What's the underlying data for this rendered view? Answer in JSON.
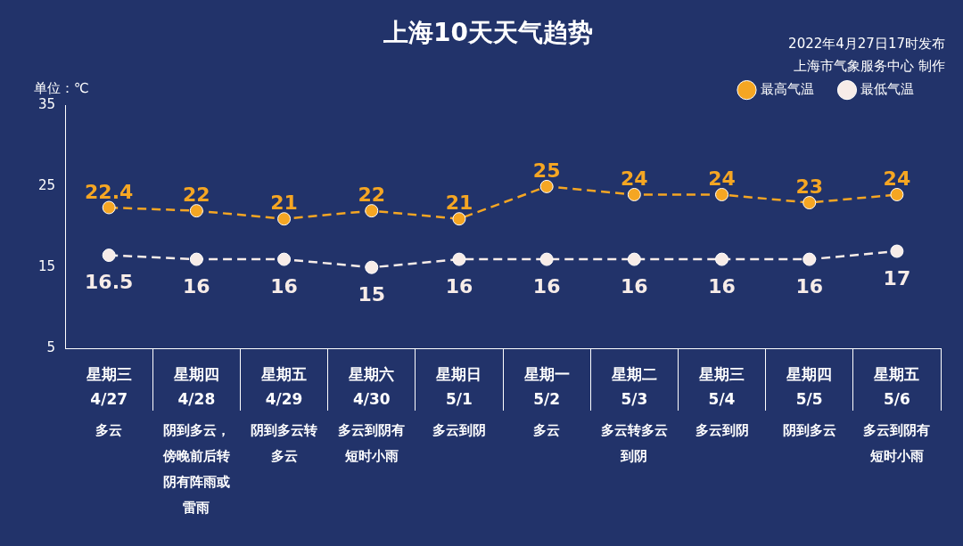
{
  "chart_data": {
    "type": "line",
    "title": "上海10天天气趋势",
    "ylabel": "单位：℃",
    "annotations": [
      "2022年4月27日17时发布",
      "上海市气象服务中心 制作"
    ],
    "categories": [
      "星期三\n4/27\n多云",
      "星期四\n4/28\n阴到多云，傍晚前后转阴有阵雨或雷雨",
      "星期五\n4/29\n阴到多云转多云",
      "星期六\n4/30\n多云到阴有短时小雨",
      "星期日\n5/1\n多云到阴",
      "星期一\n5/2\n多云",
      "星期二\n5/3\n多云转多云到阴",
      "星期三\n5/4\n多云到阴",
      "星期四\n5/5\n阴到多云",
      "星期五\n5/6\n多云到阴有短时小雨"
    ],
    "series": [
      {
        "name": "最高气温",
        "color": "#f5a623",
        "values": [
          22.4,
          22,
          21,
          22,
          21,
          25,
          24,
          24,
          23,
          24
        ]
      },
      {
        "name": "最低气温",
        "color": "#f7ece8",
        "values": [
          16.5,
          16,
          16,
          15,
          16,
          16,
          16,
          16,
          16,
          17
        ]
      }
    ],
    "ylim": [
      5,
      35
    ],
    "yticks": [
      5,
      15,
      25,
      35
    ],
    "legend": "top right",
    "marker": "circle",
    "line_style": "dashed",
    "data_labels": true
  }
}
